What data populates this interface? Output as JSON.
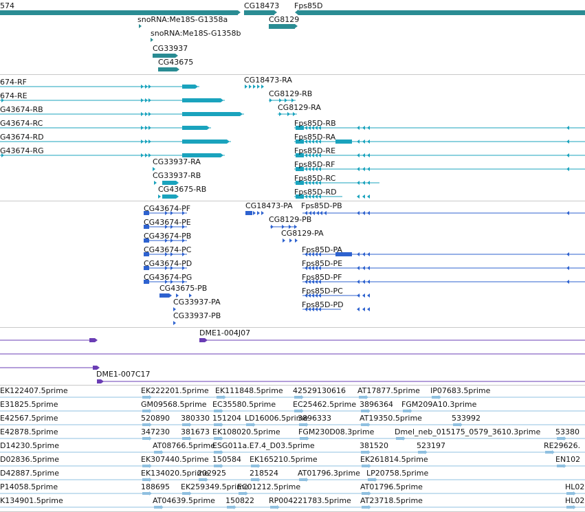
{
  "colors": {
    "gene": "#2a8c93",
    "rna_transcript": "#1aa3bd",
    "protein": "#2e62cf",
    "clone": "#6a3db4",
    "est": "#8fc0e0",
    "separator": "#c8c8c8"
  },
  "tracks": [
    {
      "id": "genes",
      "items": [
        {
          "label": "574",
          "icon": "gene-bar"
        },
        {
          "label": "CG18473",
          "icon": "gene-arrow"
        },
        {
          "label": "Fps85D",
          "icon": "gene-bar"
        },
        {
          "label": "snoRNA:Me18S-G1358a",
          "icon": "gene-arrow"
        },
        {
          "label": "CG8129",
          "icon": "gene-bar"
        },
        {
          "label": "snoRNA:Me18S-G1358b",
          "icon": "gene-arrow"
        },
        {
          "label": "CG33937",
          "icon": "gene-bar"
        },
        {
          "label": "CG43675",
          "icon": "gene-bar"
        }
      ]
    },
    {
      "id": "transcripts",
      "items": [
        {
          "label": "674-RF"
        },
        {
          "label": "674-RE"
        },
        {
          "label": "G43674-RB"
        },
        {
          "label": "G43674-RC"
        },
        {
          "label": "G43674-RD"
        },
        {
          "label": "G43674-RG"
        },
        {
          "label": "CG18473-RA"
        },
        {
          "label": "CG8129-RB"
        },
        {
          "label": "CG8129-RA"
        },
        {
          "label": "Fps85D-RB"
        },
        {
          "label": "Fps85D-RA"
        },
        {
          "label": "Fps85D-RE"
        },
        {
          "label": "Fps85D-RF"
        },
        {
          "label": "Fps85D-RC"
        },
        {
          "label": "Fps85D-RD"
        },
        {
          "label": "CG33937-RA"
        },
        {
          "label": "CG33937-RB"
        },
        {
          "label": "CG43675-RB"
        }
      ]
    },
    {
      "id": "proteins",
      "items": [
        {
          "label": "CG43674-PF"
        },
        {
          "label": "CG43674-PE"
        },
        {
          "label": "CG43674-PB"
        },
        {
          "label": "CG43674-PC"
        },
        {
          "label": "CG43674-PD"
        },
        {
          "label": "CG43674-PG"
        },
        {
          "label": "CG43675-PB"
        },
        {
          "label": "CG33937-PA"
        },
        {
          "label": "CG33937-PB"
        },
        {
          "label": "CG18473-PA"
        },
        {
          "label": "Fps85D-PB"
        },
        {
          "label": "CG8129-PB"
        },
        {
          "label": "CG8129-PA"
        },
        {
          "label": "Fps85D-PA"
        },
        {
          "label": "Fps85D-PE"
        },
        {
          "label": "Fps85D-PF"
        },
        {
          "label": "Fps85D-PC"
        },
        {
          "label": "Fps85D-PD"
        }
      ]
    },
    {
      "id": "clones",
      "items": [
        {
          "label": "DME1-004J07"
        },
        {
          "label": "DME1-007C17"
        }
      ]
    },
    {
      "id": "ests",
      "items": [
        {
          "label": "EK122407.5prime"
        },
        {
          "label": "EK222201.5prime"
        },
        {
          "label": "EK111848.5prime"
        },
        {
          "label": "42529130616"
        },
        {
          "label": "AT17877.5prime"
        },
        {
          "label": "IP07683.5prime"
        },
        {
          "label": "E31825.5prime"
        },
        {
          "label": "GM09568.5prime"
        },
        {
          "label": "EC35580.5prime"
        },
        {
          "label": "EC25462.5prime"
        },
        {
          "label": "3896364"
        },
        {
          "label": "FGM209A10.3prime"
        },
        {
          "label": "E42567.5prime"
        },
        {
          "label": "520890"
        },
        {
          "label": "380330"
        },
        {
          "label": "151204"
        },
        {
          "label": "LD16006.5prime"
        },
        {
          "label": "3896333"
        },
        {
          "label": "AT19350.5prime"
        },
        {
          "label": "533992"
        },
        {
          "label": "E42878.5prime"
        },
        {
          "label": "347230"
        },
        {
          "label": "381673"
        },
        {
          "label": "EK108020.5prime"
        },
        {
          "label": "FGM230D08.3prime"
        },
        {
          "label": "Dmel_neb_015175_0579_3610.3prime"
        },
        {
          "label": "53380"
        },
        {
          "label": "D14230.5prime"
        },
        {
          "label": "AT08766.5prime"
        },
        {
          "label": "ESG011a.E7.4_D03.5prime"
        },
        {
          "label": "381520"
        },
        {
          "label": "523197"
        },
        {
          "label": "RE29626."
        },
        {
          "label": "D02836.5prime"
        },
        {
          "label": "EK307440.5prime"
        },
        {
          "label": "150584"
        },
        {
          "label": "EK165210.5prime"
        },
        {
          "label": "EK261814.5prime"
        },
        {
          "label": "EN102"
        },
        {
          "label": "D42887.5prime"
        },
        {
          "label": "EK134020.5prime"
        },
        {
          "label": "202925"
        },
        {
          "label": "218524"
        },
        {
          "label": "AT01796.3prime"
        },
        {
          "label": "LP20758.5prime"
        },
        {
          "label": "P14058.5prime"
        },
        {
          "label": "188695"
        },
        {
          "label": "EK259349.5prime"
        },
        {
          "label": "EC01212.5prime"
        },
        {
          "label": "AT01796.5prime"
        },
        {
          "label": "HL02"
        },
        {
          "label": "K134901.5prime"
        },
        {
          "label": "AT04639.5prime"
        },
        {
          "label": "150822"
        },
        {
          "label": "RP004221783.5prime"
        },
        {
          "label": "AT23718.5prime"
        },
        {
          "label": "HL02"
        }
      ]
    }
  ]
}
